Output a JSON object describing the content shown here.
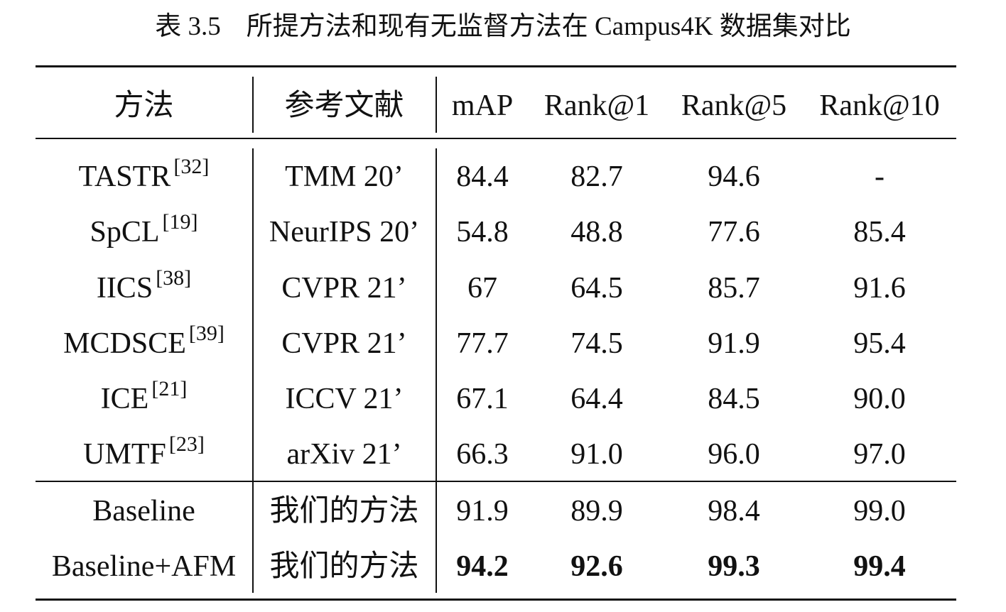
{
  "caption": {
    "number": "表 3.5",
    "text": "所提方法和现有无监督方法在 Campus4K 数据集对比"
  },
  "table": {
    "headers": [
      "方法",
      "参考文献",
      "mAP",
      "Rank@1",
      "Rank@5",
      "Rank@10"
    ],
    "rows": [
      {
        "method": "TASTR",
        "ref": "[32]",
        "venue": "TMM 20’",
        "map": "84.4",
        "r1": "82.7",
        "r5": "94.6",
        "r10": "-"
      },
      {
        "method": "SpCL",
        "ref": "[19]",
        "venue": "NeurIPS 20’",
        "map": "54.8",
        "r1": "48.8",
        "r5": "77.6",
        "r10": "85.4"
      },
      {
        "method": "IICS",
        "ref": "[38]",
        "venue": "CVPR 21’",
        "map": "67",
        "r1": "64.5",
        "r5": "85.7",
        "r10": "91.6"
      },
      {
        "method": "MCDSCE",
        "ref": "[39]",
        "venue": "CVPR 21’",
        "map": "77.7",
        "r1": "74.5",
        "r5": "91.9",
        "r10": "95.4"
      },
      {
        "method": "ICE",
        "ref": "[21]",
        "venue": "ICCV 21’",
        "map": "67.1",
        "r1": "64.4",
        "r5": "84.5",
        "r10": "90.0"
      },
      {
        "method": "UMTF",
        "ref": "[23]",
        "venue": "arXiv 21’",
        "map": "66.3",
        "r1": "91.0",
        "r5": "96.0",
        "r10": "97.0"
      },
      {
        "method": "Baseline",
        "ref": "",
        "venue": "我们的方法",
        "map": "91.9",
        "r1": "89.9",
        "r5": "98.4",
        "r10": "99.0"
      },
      {
        "method": "Baseline+AFM",
        "ref": "",
        "venue": "我们的方法",
        "map": "94.2",
        "r1": "92.6",
        "r5": "99.3",
        "r10": "99.4"
      }
    ]
  }
}
